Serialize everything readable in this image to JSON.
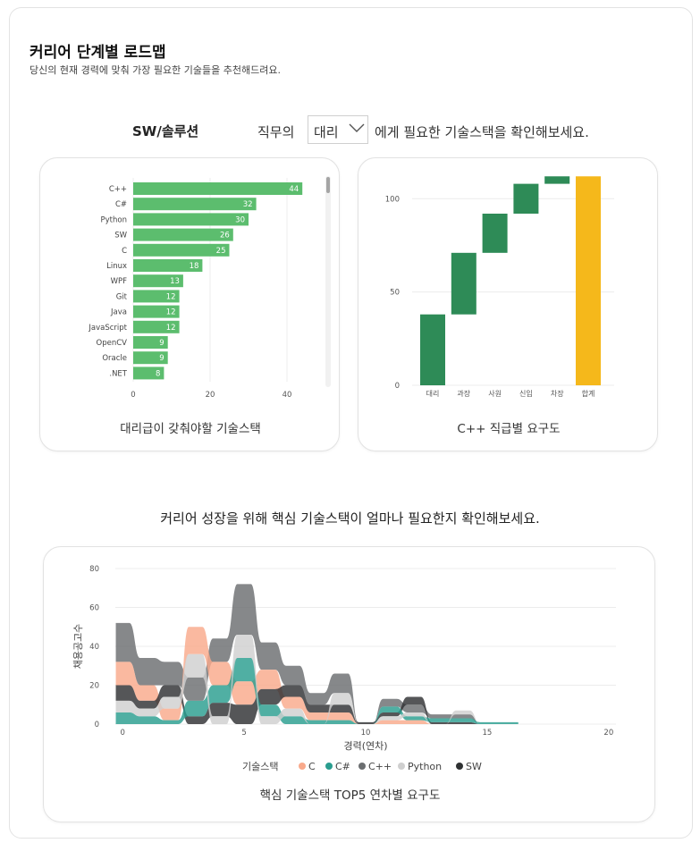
{
  "header": {
    "title": "커리어 단계별 로드맵",
    "subtitle": "당신의 현재 경력에 맞춰 가장 필요한 기술들을 추천해드려요."
  },
  "selector": {
    "category": "SW/솔루션",
    "prefix": "직무의",
    "selected": "대리",
    "suffix": "에게 필요한 기술스택을 확인해보세요."
  },
  "cards": {
    "bar_caption": "대리급이 갖춰야할 기술스택",
    "waterfall_caption": "C++ 직급별 요구도",
    "ribbon_caption": "핵심 기술스택 TOP5 연차별 요구도"
  },
  "middle_text": "커리어 성장을 위해 핵심 기술스택이 얼마나 필요한지 확인해보세요.",
  "colors": {
    "bar": "#5cbd6e",
    "waterfall_step": "#2e8b57",
    "waterfall_total": "#f5b81b",
    "C": "#f9a98b",
    "C#": "#2a9d8f",
    "C++": "#6b6e70",
    "Python": "#cfcfcf",
    "SW": "#2f3133"
  },
  "chart_data": [
    {
      "type": "bar",
      "orientation": "horizontal",
      "categories": [
        "C++",
        "C#",
        "Python",
        "SW",
        "C",
        "Linux",
        "WPF",
        "Git",
        "Java",
        "JavaScript",
        "OpenCV",
        "Oracle",
        ".NET"
      ],
      "values": [
        44,
        32,
        30,
        26,
        25,
        18,
        13,
        12,
        12,
        12,
        9,
        9,
        8
      ],
      "x_ticks": [
        "0",
        "20",
        "40"
      ],
      "xlim": [
        0,
        50
      ]
    },
    {
      "type": "bar",
      "subtype": "waterfall",
      "categories": [
        "대리",
        "과장",
        "사원",
        "신입",
        "차장",
        "합계"
      ],
      "values": [
        38,
        33,
        21,
        16,
        4,
        112
      ],
      "total_index": 5,
      "y_ticks": [
        "0",
        "50",
        "100"
      ],
      "ylim": [
        0,
        115
      ]
    },
    {
      "type": "area",
      "subtype": "ribbon",
      "xlabel": "경력(연차)",
      "ylabel": "채용공고수",
      "x_ticks": [
        "0",
        "5",
        "10",
        "15",
        "20"
      ],
      "y_ticks": [
        "0",
        "20",
        "40",
        "60",
        "80"
      ],
      "xlim": [
        -0.3,
        20.3
      ],
      "ylim": [
        0,
        80
      ],
      "legend_title": "기술스택",
      "x": [
        0,
        1,
        2,
        3,
        4,
        5,
        6,
        7,
        8,
        9,
        10,
        11,
        12,
        13,
        14,
        15,
        16
      ],
      "series": [
        {
          "name": "C",
          "values": [
            12,
            8,
            6,
            14,
            12,
            12,
            10,
            6,
            4,
            4,
            0,
            2,
            2,
            0,
            0,
            0,
            0
          ]
        },
        {
          "name": "C#",
          "values": [
            6,
            4,
            2,
            8,
            9,
            12,
            6,
            4,
            2,
            2,
            0,
            3,
            2,
            2,
            2,
            1,
            1
          ]
        },
        {
          "name": "C++",
          "values": [
            20,
            14,
            12,
            12,
            12,
            26,
            14,
            10,
            6,
            10,
            0,
            4,
            4,
            2,
            2,
            0,
            0
          ]
        },
        {
          "name": "Python",
          "values": [
            6,
            4,
            6,
            12,
            4,
            12,
            4,
            4,
            0,
            6,
            0,
            2,
            2,
            0,
            2,
            0,
            0
          ]
        },
        {
          "name": "SW",
          "values": [
            8,
            4,
            6,
            4,
            7,
            10,
            8,
            6,
            4,
            4,
            1,
            2,
            4,
            1,
            1,
            0,
            0
          ]
        }
      ]
    }
  ]
}
